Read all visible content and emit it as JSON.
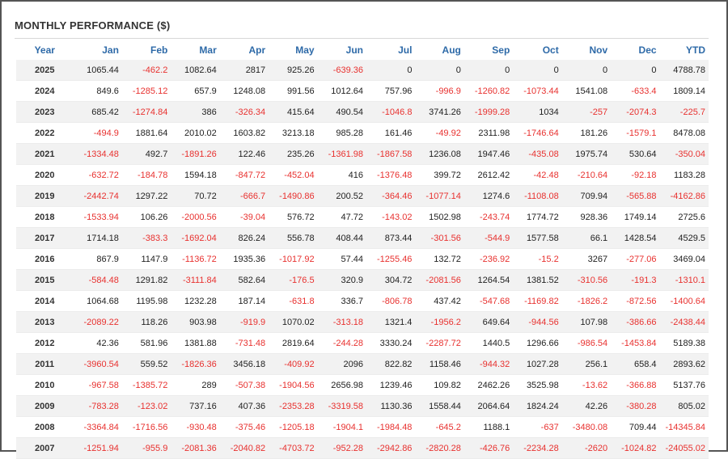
{
  "title": "MONTHLY PERFORMANCE ($)",
  "colors": {
    "header": "#2e6aa8",
    "negative": "#e8312f",
    "text": "#222222",
    "stripe": "#f2f2f2"
  },
  "columns": [
    "Year",
    "Jan",
    "Feb",
    "Mar",
    "Apr",
    "May",
    "Jun",
    "Jul",
    "Aug",
    "Sep",
    "Oct",
    "Nov",
    "Dec",
    "YTD"
  ],
  "rows": [
    [
      "2025",
      "1065.44",
      "-462.2",
      "1082.64",
      "2817",
      "925.26",
      "-639.36",
      "0",
      "0",
      "0",
      "0",
      "0",
      "0",
      "4788.78"
    ],
    [
      "2024",
      "849.6",
      "-1285.12",
      "657.9",
      "1248.08",
      "991.56",
      "1012.64",
      "757.96",
      "-996.9",
      "-1260.82",
      "-1073.44",
      "1541.08",
      "-633.4",
      "1809.14"
    ],
    [
      "2023",
      "685.42",
      "-1274.84",
      "386",
      "-326.34",
      "415.64",
      "490.54",
      "-1046.8",
      "3741.26",
      "-1999.28",
      "1034",
      "-257",
      "-2074.3",
      "-225.7"
    ],
    [
      "2022",
      "-494.9",
      "1881.64",
      "2010.02",
      "1603.82",
      "3213.18",
      "985.28",
      "161.46",
      "-49.92",
      "2311.98",
      "-1746.64",
      "181.26",
      "-1579.1",
      "8478.08"
    ],
    [
      "2021",
      "-1334.48",
      "492.7",
      "-1891.26",
      "122.46",
      "235.26",
      "-1361.98",
      "-1867.58",
      "1236.08",
      "1947.46",
      "-435.08",
      "1975.74",
      "530.64",
      "-350.04"
    ],
    [
      "2020",
      "-632.72",
      "-184.78",
      "1594.18",
      "-847.72",
      "-452.04",
      "416",
      "-1376.48",
      "399.72",
      "2612.42",
      "-42.48",
      "-210.64",
      "-92.18",
      "1183.28"
    ],
    [
      "2019",
      "-2442.74",
      "1297.22",
      "70.72",
      "-666.7",
      "-1490.86",
      "200.52",
      "-364.46",
      "-1077.14",
      "1274.6",
      "-1108.08",
      "709.94",
      "-565.88",
      "-4162.86"
    ],
    [
      "2018",
      "-1533.94",
      "106.26",
      "-2000.56",
      "-39.04",
      "576.72",
      "47.72",
      "-143.02",
      "1502.98",
      "-243.74",
      "1774.72",
      "928.36",
      "1749.14",
      "2725.6"
    ],
    [
      "2017",
      "1714.18",
      "-383.3",
      "-1692.04",
      "826.24",
      "556.78",
      "408.44",
      "873.44",
      "-301.56",
      "-544.9",
      "1577.58",
      "66.1",
      "1428.54",
      "4529.5"
    ],
    [
      "2016",
      "867.9",
      "1147.9",
      "-1136.72",
      "1935.36",
      "-1017.92",
      "57.44",
      "-1255.46",
      "132.72",
      "-236.92",
      "-15.2",
      "3267",
      "-277.06",
      "3469.04"
    ],
    [
      "2015",
      "-584.48",
      "1291.82",
      "-3111.84",
      "582.64",
      "-176.5",
      "320.9",
      "304.72",
      "-2081.56",
      "1264.54",
      "1381.52",
      "-310.56",
      "-191.3",
      "-1310.1"
    ],
    [
      "2014",
      "1064.68",
      "1195.98",
      "1232.28",
      "187.14",
      "-631.8",
      "336.7",
      "-806.78",
      "437.42",
      "-547.68",
      "-1169.82",
      "-1826.2",
      "-872.56",
      "-1400.64"
    ],
    [
      "2013",
      "-2089.22",
      "118.26",
      "903.98",
      "-919.9",
      "1070.02",
      "-313.18",
      "1321.4",
      "-1956.2",
      "649.64",
      "-944.56",
      "107.98",
      "-386.66",
      "-2438.44"
    ],
    [
      "2012",
      "42.36",
      "581.96",
      "1381.88",
      "-731.48",
      "2819.64",
      "-244.28",
      "3330.24",
      "-2287.72",
      "1440.5",
      "1296.66",
      "-986.54",
      "-1453.84",
      "5189.38"
    ],
    [
      "2011",
      "-3960.54",
      "559.52",
      "-1826.36",
      "3456.18",
      "-409.92",
      "2096",
      "822.82",
      "1158.46",
      "-944.32",
      "1027.28",
      "256.1",
      "658.4",
      "2893.62"
    ],
    [
      "2010",
      "-967.58",
      "-1385.72",
      "289",
      "-507.38",
      "-1904.56",
      "2656.98",
      "1239.46",
      "109.82",
      "2462.26",
      "3525.98",
      "-13.62",
      "-366.88",
      "5137.76"
    ],
    [
      "2009",
      "-783.28",
      "-123.02",
      "737.16",
      "407.36",
      "-2353.28",
      "-3319.58",
      "1130.36",
      "1558.44",
      "2064.64",
      "1824.24",
      "42.26",
      "-380.28",
      "805.02"
    ],
    [
      "2008",
      "-3364.84",
      "-1716.56",
      "-930.48",
      "-375.46",
      "-1205.18",
      "-1904.1",
      "-1984.48",
      "-645.2",
      "1188.1",
      "-637",
      "-3480.08",
      "709.44",
      "-14345.84"
    ],
    [
      "2007",
      "-1251.94",
      "-955.9",
      "-2081.36",
      "-2040.82",
      "-4703.72",
      "-952.28",
      "-2942.86",
      "-2820.28",
      "-426.76",
      "-2234.28",
      "-2620",
      "-1024.82",
      "-24055.02"
    ]
  ]
}
